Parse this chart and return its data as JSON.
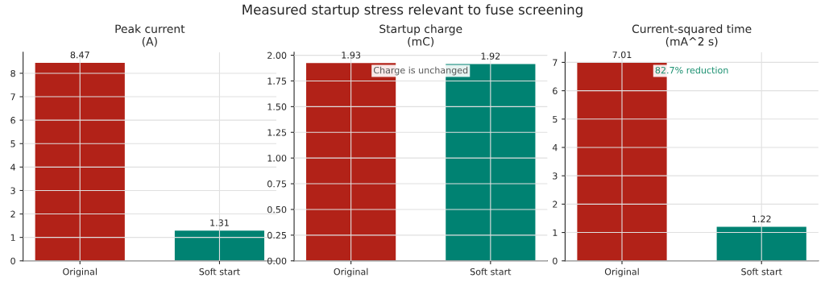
{
  "chart_data": [
    {
      "type": "bar",
      "title": "Peak current\n(A)",
      "annotations": [
        "Measured startup stress relevant to fuse screening"
      ],
      "categories": [
        "Original",
        "Soft start"
      ],
      "values": [
        8.47,
        1.31
      ],
      "colors": [
        "#b22218",
        "#008272"
      ],
      "ylim": [
        0,
        8.9
      ],
      "yticks": [
        0,
        1,
        2,
        3,
        4,
        5,
        6,
        7,
        8
      ],
      "grid": true,
      "data_labels": true
    },
    {
      "type": "bar",
      "title": "Startup charge\n(mC)",
      "annotations": [
        "Charge is unchanged"
      ],
      "categories": [
        "Original",
        "Soft start"
      ],
      "values": [
        1.93,
        1.92
      ],
      "colors": [
        "#b22218",
        "#008272"
      ],
      "ylim": [
        0,
        2.03
      ],
      "yticks": [
        {
          "value": 0,
          "label": "0.00"
        },
        0.25,
        {
          "value": 0.5,
          "label": "0.50"
        },
        0.75,
        {
          "value": 1,
          "label": "1.00"
        },
        1.25,
        {
          "value": 1.5,
          "label": "1.50"
        },
        1.75,
        {
          "value": 2,
          "label": "2.00"
        }
      ],
      "grid": true,
      "data_labels": true
    },
    {
      "type": "bar",
      "title": "Current-squared time\n(mA^2 s)",
      "annotations": [
        "82.7% reduction"
      ],
      "categories": [
        "Original",
        "Soft start"
      ],
      "values": [
        7.01,
        1.22
      ],
      "colors": [
        "#b22218",
        "#008272"
      ],
      "ylim": [
        0,
        7.36
      ],
      "yticks": [
        0,
        1,
        2,
        3,
        4,
        5,
        6,
        7
      ],
      "grid": true,
      "data_labels": true
    }
  ]
}
